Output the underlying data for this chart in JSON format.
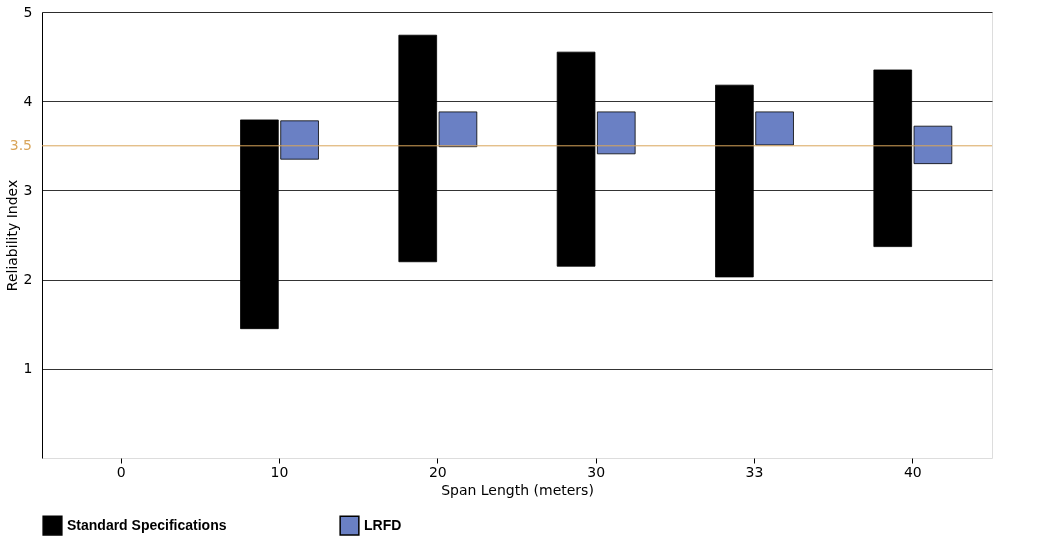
{
  "chart_data": {
    "type": "bar",
    "xlabel": "Span Length (meters)",
    "ylabel": "Reliability Index",
    "categories": [
      "0",
      "10",
      "20",
      "30",
      "33",
      "40"
    ],
    "series": [
      {
        "name": "Standard Specifications",
        "color": "#000000",
        "base": [
          null,
          1.45,
          2.2,
          2.15,
          2.03,
          2.37
        ],
        "values": [
          null,
          2.34,
          2.54,
          2.4,
          2.15,
          1.98
        ]
      },
      {
        "name": "LRFD",
        "color": "#6a80c4",
        "base": [
          null,
          3.35,
          3.49,
          3.41,
          3.51,
          3.3
        ],
        "values": [
          null,
          0.43,
          0.39,
          0.47,
          0.37,
          0.42
        ]
      }
    ],
    "ylim": [
      0,
      5
    ],
    "yticks": [
      1,
      2,
      3,
      4,
      5
    ],
    "ref_lines": [
      {
        "axis": "y",
        "value": 3.5,
        "label": "3.5",
        "color": "#d9a55a"
      }
    ],
    "grid": "y",
    "legend": "bottom"
  }
}
